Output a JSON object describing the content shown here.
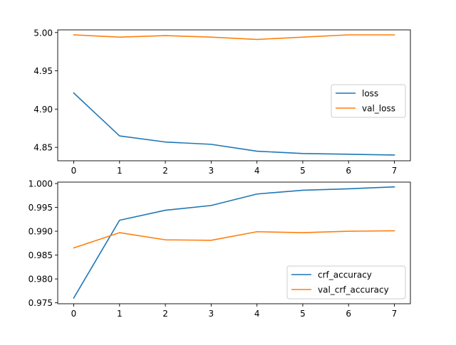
{
  "chart_data": [
    {
      "type": "line",
      "x": [
        0,
        1,
        2,
        3,
        4,
        5,
        6,
        7
      ],
      "xlim": [
        -0.35,
        7.35
      ],
      "ylim": [
        4.8325,
        5.0035
      ],
      "xticks": [
        "0",
        "1",
        "2",
        "3",
        "4",
        "5",
        "6",
        "7"
      ],
      "yticks": [
        {
          "value": 4.85,
          "label": "4.85"
        },
        {
          "value": 4.9,
          "label": "4.90"
        },
        {
          "value": 4.95,
          "label": "4.95"
        },
        {
          "value": 5.0,
          "label": "5.00"
        }
      ],
      "legend_position": "center-right",
      "series": [
        {
          "name": "loss",
          "color": "#1f77b4",
          "values": [
            4.921,
            4.865,
            4.857,
            4.854,
            4.845,
            4.842,
            4.841,
            4.84
          ]
        },
        {
          "name": "val_loss",
          "color": "#ff7f0e",
          "values": [
            4.997,
            4.994,
            4.996,
            4.994,
            4.991,
            4.994,
            4.997,
            4.997
          ]
        }
      ]
    },
    {
      "type": "line",
      "x": [
        0,
        1,
        2,
        3,
        4,
        5,
        6,
        7
      ],
      "xlim": [
        -0.35,
        7.35
      ],
      "ylim": [
        0.9748,
        1.0003
      ],
      "xticks": [
        "0",
        "1",
        "2",
        "3",
        "4",
        "5",
        "6",
        "7"
      ],
      "yticks": [
        {
          "value": 0.975,
          "label": "0.975"
        },
        {
          "value": 0.98,
          "label": "0.980"
        },
        {
          "value": 0.985,
          "label": "0.985"
        },
        {
          "value": 0.99,
          "label": "0.990"
        },
        {
          "value": 0.995,
          "label": "0.995"
        },
        {
          "value": 1.0,
          "label": "1.000"
        }
      ],
      "legend_position": "lower-right",
      "series": [
        {
          "name": "crf_accuracy",
          "color": "#1f77b4",
          "values": [
            0.976,
            0.9923,
            0.9944,
            0.9954,
            0.9978,
            0.9986,
            0.9989,
            0.9993
          ]
        },
        {
          "name": "val_crf_accuracy",
          "color": "#ff7f0e",
          "values": [
            0.9865,
            0.9897,
            0.9882,
            0.9881,
            0.9899,
            0.9897,
            0.99,
            0.9901
          ]
        }
      ]
    }
  ]
}
